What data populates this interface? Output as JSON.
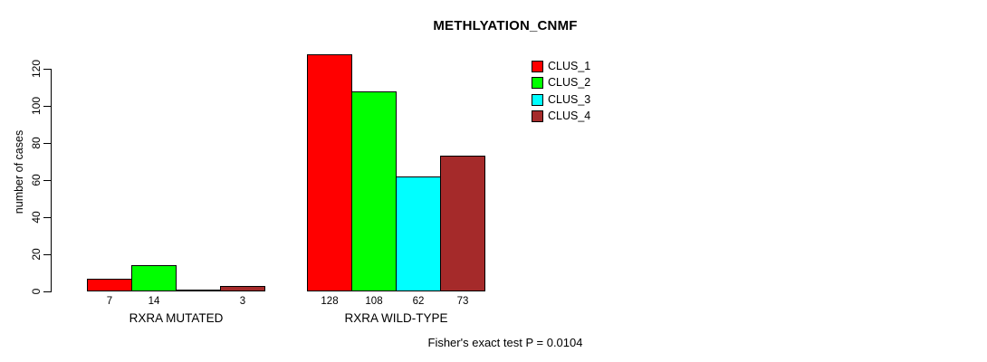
{
  "chart_data": {
    "type": "bar",
    "title": "METHLYATION_CNMF",
    "ylabel": "number of cases",
    "xlabel": "",
    "ylim": [
      0,
      120
    ],
    "yticks": [
      0,
      20,
      40,
      60,
      80,
      100,
      120
    ],
    "grid": false,
    "legend_position": "top-right",
    "categories": [
      "RXRA MUTATED",
      "RXRA WILD-TYPE"
    ],
    "series": [
      {
        "name": "CLUS_1",
        "color": "#ff0000",
        "values": [
          7,
          128
        ]
      },
      {
        "name": "CLUS_2",
        "color": "#00ff00",
        "values": [
          14,
          108
        ]
      },
      {
        "name": "CLUS_3",
        "color": "#00ffff",
        "values": [
          0,
          62
        ]
      },
      {
        "name": "CLUS_4",
        "color": "#a52a2a",
        "values": [
          3,
          73
        ]
      }
    ],
    "bar_value_labels": [
      [
        "7",
        "14",
        "",
        "3"
      ],
      [
        "128",
        "108",
        "62",
        "73"
      ]
    ],
    "annotation": "Fisher's exact test P = 0.0104",
    "axis_color": "#000000",
    "background_color": "#ffffff"
  }
}
